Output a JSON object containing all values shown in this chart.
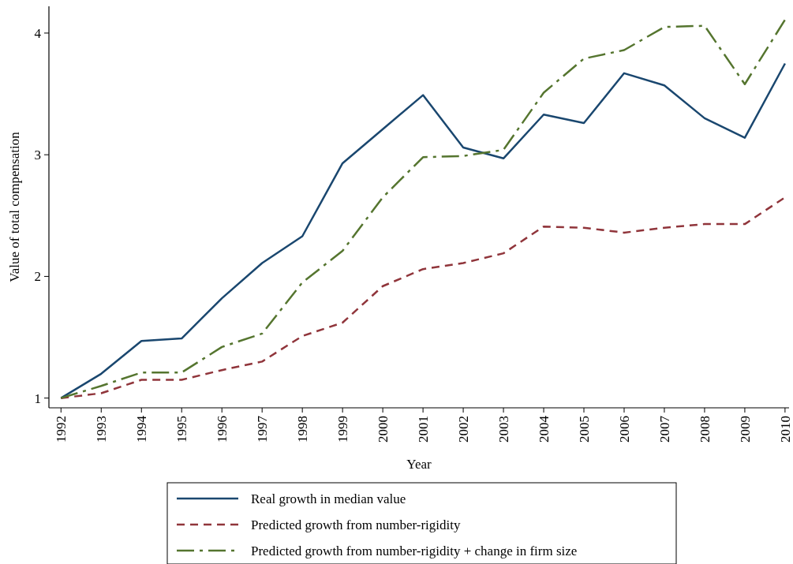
{
  "chart_data": {
    "type": "line",
    "xlabel": "Year",
    "ylabel": "Value of total compensation",
    "x": [
      1992,
      1993,
      1994,
      1995,
      1996,
      1997,
      1998,
      1999,
      2000,
      2001,
      2002,
      2003,
      2004,
      2005,
      2006,
      2007,
      2008,
      2009,
      2010
    ],
    "series": [
      {
        "name": "Real growth in median value",
        "color": "#1a476f",
        "line_style": "solid",
        "values": [
          1.0,
          1.2,
          1.47,
          1.49,
          1.82,
          2.11,
          2.33,
          2.93,
          3.21,
          3.49,
          3.06,
          2.97,
          3.33,
          3.26,
          3.67,
          3.57,
          3.3,
          3.14,
          3.75
        ]
      },
      {
        "name": "Predicted growth from number-rigidity",
        "color": "#90353b",
        "line_style": "dashed",
        "values": [
          1.0,
          1.04,
          1.15,
          1.15,
          1.23,
          1.3,
          1.51,
          1.62,
          1.92,
          2.06,
          2.11,
          2.19,
          2.41,
          2.4,
          2.36,
          2.4,
          2.43,
          2.43,
          2.65
        ]
      },
      {
        "name": "Predicted growth from number-rigidity + change in firm size",
        "color": "#55752f",
        "line_style": "dashdot",
        "values": [
          1.0,
          1.1,
          1.21,
          1.21,
          1.42,
          1.53,
          1.95,
          2.21,
          2.65,
          2.98,
          2.99,
          3.04,
          3.51,
          3.79,
          3.86,
          4.05,
          4.06,
          3.58,
          4.11
        ]
      }
    ],
    "xlim": [
      1991.7,
      2010.1
    ],
    "xticks": [
      1992,
      1993,
      1994,
      1995,
      1996,
      1997,
      1998,
      1999,
      2000,
      2001,
      2002,
      2003,
      2004,
      2005,
      2006,
      2007,
      2008,
      2009,
      2010
    ],
    "ylim": [
      0.92,
      4.22
    ],
    "yticks": [
      1,
      2,
      3,
      4
    ],
    "grid": false,
    "legend": "bottom",
    "marker": "none"
  }
}
